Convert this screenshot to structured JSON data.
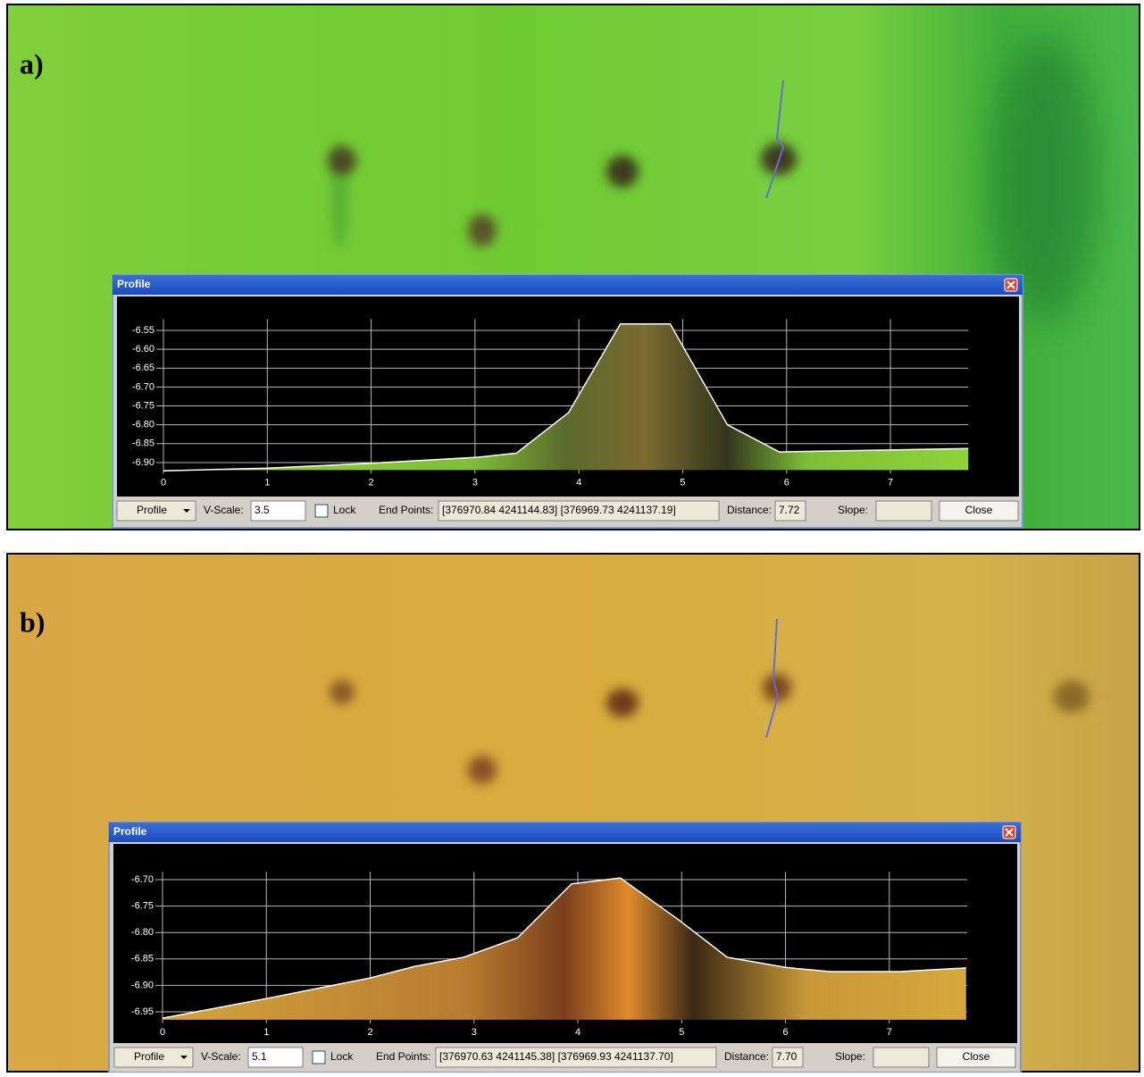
{
  "panels": [
    {
      "label": "a)",
      "window": {
        "title": "Profile",
        "chart": {
          "type": "area",
          "x": [
            0,
            1,
            2,
            3.03,
            3.4,
            3.9,
            4.4,
            4.88,
            5.43,
            5.93,
            7.75
          ],
          "values": [
            -6.922,
            -6.915,
            -6.902,
            -6.886,
            -6.875,
            -6.768,
            -6.533,
            -6.533,
            -6.8,
            -6.872,
            -6.863
          ],
          "xlim": [
            0,
            7.75
          ],
          "ylim": [
            -6.92,
            -6.52
          ],
          "xticks": [
            0,
            1,
            2,
            3,
            4,
            5,
            6,
            7
          ],
          "yticks": [
            -6.55,
            {
              "value": -6.6,
              "label": "-6.60"
            },
            -6.65,
            {
              "value": -6.7,
              "label": "-6.70"
            },
            -6.75,
            {
              "value": -6.8,
              "label": "-6.80"
            },
            -6.85,
            {
              "value": -6.9,
              "label": "-6.90"
            }
          ],
          "grid": true
        },
        "controls": {
          "mode": "Profile",
          "vscale_label": "V-Scale:",
          "vscale": "3.5",
          "lock": "Lock",
          "endpoints_label": "End Points:",
          "endpoints": "[376970.84 4241144.83] [376969.73 4241137.19]",
          "distance_label": "Distance:",
          "distance": "7.72",
          "slope_label": "Slope:",
          "close": "Close"
        }
      }
    },
    {
      "label": "b)",
      "window": {
        "title": "Profile",
        "chart": {
          "type": "area",
          "x": [
            0,
            1,
            2,
            2.43,
            2.9,
            3.42,
            3.94,
            4.41,
            4.97,
            5.44,
            6,
            6.43,
            7.1,
            7.74
          ],
          "values": [
            -6.962,
            -6.925,
            -6.886,
            -6.864,
            -6.847,
            -6.81,
            -6.708,
            -6.697,
            -6.776,
            -6.847,
            -6.866,
            -6.874,
            -6.874,
            -6.867
          ],
          "xlim": [
            0,
            7.75
          ],
          "ylim": [
            -6.965,
            -6.685
          ],
          "xticks": [
            0,
            1,
            2,
            3,
            4,
            5,
            6,
            7
          ],
          "yticks": [
            {
              "value": -6.7,
              "label": "-6.70"
            },
            -6.75,
            {
              "value": -6.8,
              "label": "-6.80"
            },
            -6.85,
            {
              "value": -6.9,
              "label": "-6.90"
            },
            -6.95
          ],
          "grid": true
        },
        "controls": {
          "mode": "Profile",
          "vscale_label": "V-Scale:",
          "vscale": "5.1",
          "lock": "Lock",
          "endpoints_label": "End Points:",
          "endpoints": "[376970.63 4241145.38] [376969.93 4241137.70]",
          "distance_label": "Distance:",
          "distance": "7.70",
          "slope_label": "Slope:",
          "close": "Close"
        }
      }
    }
  ]
}
